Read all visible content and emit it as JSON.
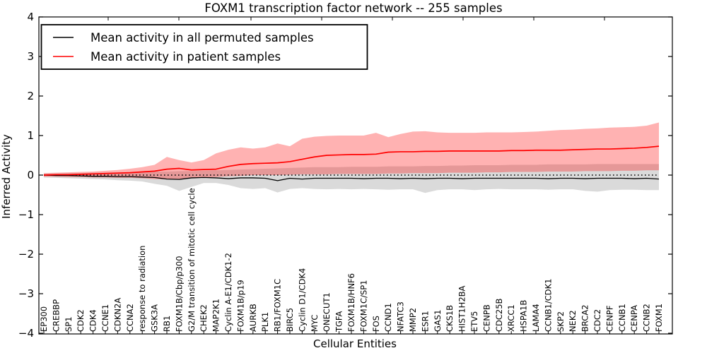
{
  "chart_data": {
    "type": "line",
    "title": "FOXM1 transcription factor network -- 255 samples",
    "xlabel": "Cellular Entities",
    "ylabel": "Inferred Activity",
    "ylim": [
      -4,
      4
    ],
    "yticks": [
      "4",
      "3",
      "2",
      "1",
      "0",
      "−1",
      "−2",
      "−3",
      "−4"
    ],
    "ytick_values": [
      4,
      3,
      2,
      1,
      0,
      -1,
      -2,
      -3,
      -4
    ],
    "grid": false,
    "legend_position": "upper left",
    "zero_reference_line": 0,
    "categories": [
      "EP300",
      "CREBBP",
      "SP1",
      "CDK2",
      "CDK4",
      "CCNE1",
      "CDKN2A",
      "CCNA2",
      "response to radiation",
      "GSK3A",
      "RB1",
      "FOXM1B/Cbp/p300",
      "G2/M transition of mitotic cell cycle",
      "CHEK2",
      "MAP2K1",
      "Cyclin A-E1/CDK1-2",
      "FOXM1B/p19",
      "AURKB",
      "PLK1",
      "RB1/FOXM1C",
      "BIRC5",
      "Cyclin D1/CDK4",
      "MYC",
      "ONECUT1",
      "TGFA",
      "FOXM1B/HNF6",
      "FOXM1C/SP1",
      "FOS",
      "CCND1",
      "NFATC3",
      "MMP2",
      "ESR1",
      "GAS1",
      "CKS1B",
      "HIST1H2BA",
      "ETV5",
      "CENPB",
      "CDC25B",
      "XRCC1",
      "HSPA1B",
      "LAMA4",
      "CCNB1/CDK1",
      "SKP2",
      "NEK2",
      "BRCA2",
      "CDC2",
      "CENPF",
      "CCNB1",
      "CENPA",
      "CCNB2",
      "FOXM1"
    ],
    "series": [
      {
        "name": "Mean activity in all permuted samples",
        "color": "#000000",
        "style": "solid",
        "values": [
          0.0,
          -0.01,
          -0.01,
          -0.02,
          -0.03,
          -0.03,
          -0.04,
          -0.04,
          -0.05,
          -0.06,
          -0.1,
          -0.11,
          -0.07,
          -0.06,
          -0.07,
          -0.09,
          -0.07,
          -0.07,
          -0.08,
          -0.14,
          -0.08,
          -0.1,
          -0.08,
          -0.08,
          -0.08,
          -0.08,
          -0.09,
          -0.08,
          -0.08,
          -0.09,
          -0.08,
          -0.09,
          -0.08,
          -0.08,
          -0.09,
          -0.08,
          -0.08,
          -0.08,
          -0.08,
          -0.08,
          -0.08,
          -0.09,
          -0.08,
          -0.08,
          -0.09,
          -0.08,
          -0.08,
          -0.08,
          -0.09,
          -0.08,
          -0.1
        ]
      },
      {
        "name": "Mean activity in patient samples",
        "color": "#ff0000",
        "style": "solid",
        "values": [
          0.0,
          0.01,
          0.01,
          0.02,
          0.03,
          0.04,
          0.05,
          0.06,
          0.08,
          0.1,
          0.15,
          0.17,
          0.13,
          0.14,
          0.15,
          0.22,
          0.27,
          0.29,
          0.3,
          0.31,
          0.34,
          0.4,
          0.46,
          0.5,
          0.51,
          0.52,
          0.52,
          0.53,
          0.58,
          0.59,
          0.59,
          0.6,
          0.6,
          0.61,
          0.61,
          0.61,
          0.61,
          0.61,
          0.62,
          0.62,
          0.63,
          0.63,
          0.63,
          0.64,
          0.65,
          0.66,
          0.66,
          0.67,
          0.68,
          0.7,
          0.73
        ]
      }
    ],
    "bands": [
      {
        "name": "permuted samples spread",
        "color": "#787878",
        "opacity": 0.27,
        "upper": [
          0.04,
          0.04,
          0.05,
          0.05,
          0.06,
          0.06,
          0.07,
          0.07,
          0.08,
          0.09,
          0.09,
          0.1,
          0.1,
          0.11,
          0.12,
          0.13,
          0.14,
          0.15,
          0.16,
          0.17,
          0.18,
          0.19,
          0.2,
          0.2,
          0.2,
          0.21,
          0.21,
          0.21,
          0.22,
          0.22,
          0.22,
          0.23,
          0.23,
          0.24,
          0.24,
          0.25,
          0.25,
          0.25,
          0.26,
          0.26,
          0.26,
          0.27,
          0.27,
          0.27,
          0.27,
          0.28,
          0.28,
          0.28,
          0.28,
          0.28,
          0.28
        ],
        "lower": [
          -0.06,
          -0.07,
          -0.08,
          -0.09,
          -0.1,
          -0.11,
          -0.13,
          -0.14,
          -0.16,
          -0.22,
          -0.27,
          -0.4,
          -0.3,
          -0.2,
          -0.2,
          -0.25,
          -0.33,
          -0.35,
          -0.33,
          -0.44,
          -0.35,
          -0.33,
          -0.35,
          -0.36,
          -0.35,
          -0.36,
          -0.35,
          -0.36,
          -0.37,
          -0.36,
          -0.36,
          -0.45,
          -0.38,
          -0.36,
          -0.36,
          -0.38,
          -0.36,
          -0.35,
          -0.36,
          -0.36,
          -0.36,
          -0.37,
          -0.36,
          -0.36,
          -0.4,
          -0.42,
          -0.38,
          -0.37,
          -0.37,
          -0.38,
          -0.38
        ]
      },
      {
        "name": "patient samples spread",
        "color": "#ff0000",
        "opacity": 0.3,
        "upper": [
          0.05,
          0.06,
          0.07,
          0.08,
          0.09,
          0.11,
          0.13,
          0.16,
          0.2,
          0.26,
          0.46,
          0.38,
          0.32,
          0.38,
          0.55,
          0.64,
          0.7,
          0.67,
          0.7,
          0.8,
          0.73,
          0.92,
          0.97,
          0.99,
          1.0,
          1.0,
          1.0,
          1.07,
          0.96,
          1.04,
          1.1,
          1.11,
          1.08,
          1.07,
          1.07,
          1.07,
          1.08,
          1.08,
          1.08,
          1.09,
          1.1,
          1.12,
          1.14,
          1.15,
          1.17,
          1.18,
          1.2,
          1.21,
          1.22,
          1.25,
          1.33
        ],
        "lower": [
          -0.04,
          -0.04,
          -0.05,
          -0.05,
          -0.06,
          -0.06,
          -0.07,
          -0.07,
          -0.08,
          -0.1,
          -0.11,
          -0.1,
          -0.08,
          -0.06,
          -0.05,
          -0.03,
          -0.02,
          0.0,
          0.0,
          0.0,
          0.01,
          0.02,
          0.02,
          0.02,
          0.03,
          0.03,
          0.03,
          0.03,
          0.04,
          0.04,
          0.05,
          0.05,
          0.05,
          0.06,
          0.06,
          0.06,
          0.07,
          0.07,
          0.08,
          0.08,
          0.08,
          0.09,
          0.09,
          0.09,
          0.1,
          0.1,
          0.1,
          0.11,
          0.11,
          0.12,
          0.12
        ]
      }
    ]
  },
  "legend": {
    "items": [
      {
        "label": "Mean activity in all permuted samples",
        "color": "#000000"
      },
      {
        "label": "Mean activity in patient samples",
        "color": "#ff0000"
      }
    ]
  }
}
